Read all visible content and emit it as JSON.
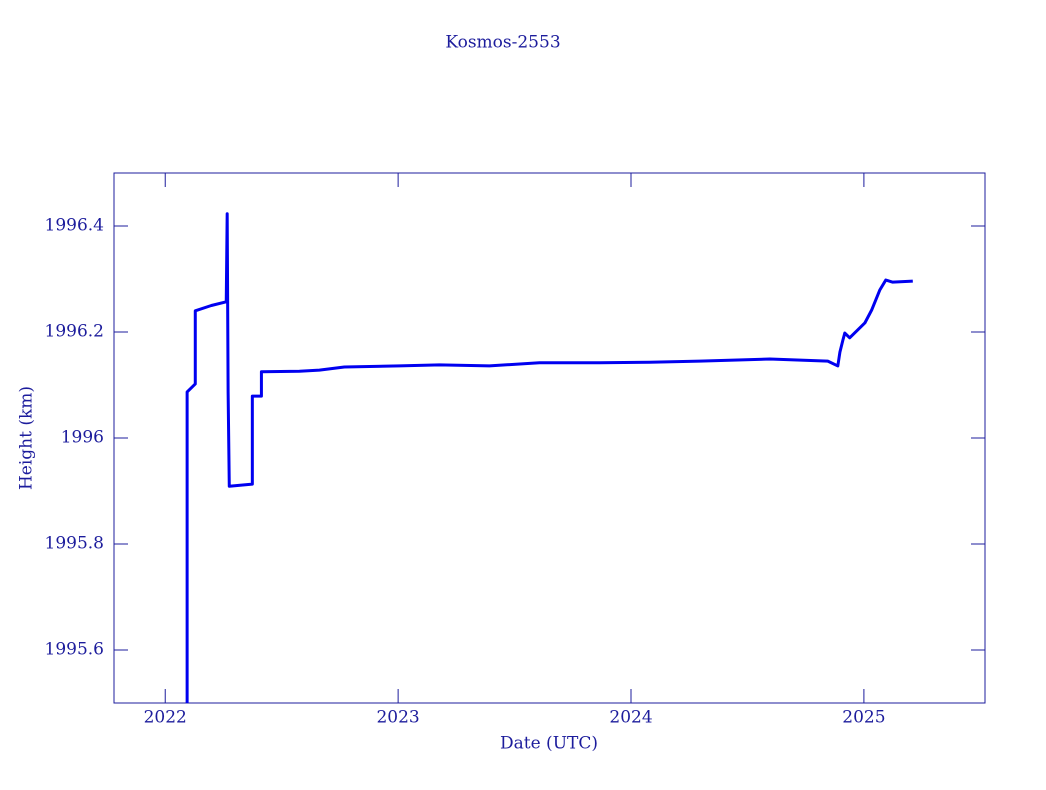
{
  "chart_data": {
    "type": "line",
    "title": "Kosmos-2553",
    "x_label": "Date (UTC)",
    "y_label": "Height (km)",
    "x": [
      2022.094,
      2022.094,
      2022.129,
      2022.129,
      2022.198,
      2022.262,
      2022.266,
      2022.27,
      2022.275,
      2022.374,
      2022.374,
      2022.413,
      2022.413,
      2022.576,
      2022.662,
      2022.769,
      2023.006,
      2023.177,
      2023.392,
      2023.607,
      2023.865,
      2024.08,
      2024.295,
      2024.596,
      2024.845,
      2024.888,
      2024.897,
      2024.91,
      2024.918,
      2024.939,
      2025.004,
      2025.034,
      2025.068,
      2025.094,
      2025.124,
      2025.21
    ],
    "series": [
      {
        "name": "Height",
        "color": "#0000f0",
        "values": [
          1995.5,
          1996.087,
          1996.102,
          1996.24,
          1996.25,
          1996.257,
          1996.423,
          1996.087,
          1995.909,
          1995.913,
          1996.079,
          1996.079,
          1996.125,
          1996.126,
          1996.128,
          1996.134,
          1996.136,
          1996.138,
          1996.136,
          1996.142,
          1996.142,
          1996.143,
          1996.145,
          1996.149,
          1996.145,
          1996.136,
          1996.162,
          1996.185,
          1996.198,
          1996.189,
          1996.217,
          1996.242,
          1996.279,
          1996.298,
          1996.294,
          1996.296
        ]
      }
    ],
    "xlim": [
      2021.78,
      2025.52
    ],
    "xticks": [
      2022,
      2023,
      2024,
      2025
    ],
    "ylim": [
      1995.5,
      1996.5
    ],
    "yticks": [
      1995.6,
      1995.8,
      1996,
      1996.2,
      1996.4
    ]
  }
}
